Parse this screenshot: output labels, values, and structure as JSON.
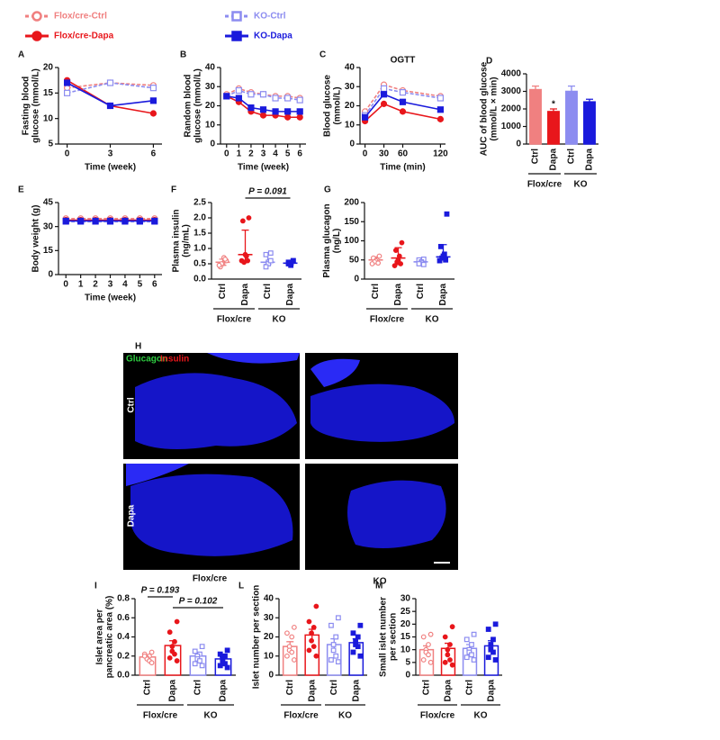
{
  "chart_data": [
    {
      "type": "line",
      "panel": "A",
      "x": [
        0,
        3,
        6
      ],
      "xlim": [
        -0.6,
        6.6
      ],
      "xticks": [
        0,
        3,
        6
      ],
      "ylim": [
        5,
        20
      ],
      "yticks": [
        5,
        10,
        15,
        20
      ],
      "xlabel": "Time (week)",
      "ylabel": [
        "Fasting blood",
        "glucose (mmol/L)"
      ],
      "series": [
        {
          "name": "Flox/cre-Ctrl",
          "color": "#f08080",
          "dashed": true,
          "marker": "circle-open",
          "values": [
            16,
            17,
            16.5
          ]
        },
        {
          "name": "Flox/cre-Dapa",
          "color": "#e8161b",
          "dashed": false,
          "marker": "circle",
          "values": [
            17.5,
            12.5,
            11
          ]
        },
        {
          "name": "KO-Ctrl",
          "color": "#8c8cf0",
          "dashed": true,
          "marker": "square-open",
          "values": [
            15,
            17,
            16
          ]
        },
        {
          "name": "KO-Dapa",
          "color": "#1a1adc",
          "dashed": false,
          "marker": "square",
          "values": [
            17,
            12.5,
            13.5
          ]
        }
      ]
    },
    {
      "type": "line",
      "panel": "B",
      "x": [
        0,
        1,
        2,
        3,
        4,
        5,
        6
      ],
      "xlim": [
        -0.5,
        6.5
      ],
      "xticks": [
        0,
        1,
        2,
        3,
        4,
        5,
        6
      ],
      "ylim": [
        0,
        40
      ],
      "yticks": [
        0,
        10,
        20,
        30,
        40
      ],
      "xlabel": "Time (week)",
      "ylabel": [
        "Random blood",
        "glucose (mmol/L)"
      ],
      "series": [
        {
          "name": "Flox/cre-Ctrl",
          "color": "#f08080",
          "dashed": true,
          "marker": "circle-open",
          "values": [
            26,
            29,
            27,
            26,
            25,
            25,
            24
          ]
        },
        {
          "name": "Flox/cre-Dapa",
          "color": "#e8161b",
          "dashed": false,
          "marker": "circle",
          "values": [
            25,
            22,
            17,
            15,
            15,
            14,
            14
          ]
        },
        {
          "name": "KO-Ctrl",
          "color": "#8c8cf0",
          "dashed": true,
          "marker": "square-open",
          "values": [
            25,
            28,
            26,
            26,
            24,
            24,
            23
          ]
        },
        {
          "name": "KO-Dapa",
          "color": "#1a1adc",
          "dashed": false,
          "marker": "square",
          "values": [
            25,
            24,
            19,
            18,
            17,
            17,
            17
          ]
        }
      ]
    },
    {
      "type": "line",
      "panel": "C",
      "title": "OGTT",
      "x": [
        0,
        30,
        60,
        120
      ],
      "xlim": [
        -8,
        128
      ],
      "xticks": [
        0,
        30,
        60,
        120
      ],
      "ylim": [
        0,
        40
      ],
      "yticks": [
        0,
        10,
        20,
        30,
        40
      ],
      "xlabel": "Time (min)",
      "ylabel": [
        "Blood glucose",
        "(mmol/L)"
      ],
      "series": [
        {
          "name": "Flox/cre-Ctrl",
          "color": "#f08080",
          "dashed": true,
          "marker": "circle-open",
          "values": [
            17,
            31,
            28,
            25
          ]
        },
        {
          "name": "Flox/cre-Dapa",
          "color": "#e8161b",
          "dashed": false,
          "marker": "circle",
          "values": [
            12,
            21,
            17,
            13
          ]
        },
        {
          "name": "KO-Ctrl",
          "color": "#8c8cf0",
          "dashed": true,
          "marker": "square-open",
          "values": [
            15,
            29,
            27,
            24
          ]
        },
        {
          "name": "KO-Dapa",
          "color": "#1a1adc",
          "dashed": false,
          "marker": "square",
          "values": [
            14,
            26,
            22,
            18
          ]
        }
      ]
    },
    {
      "type": "bar",
      "panel": "D",
      "categories": [
        "Ctrl",
        "Dapa",
        "Ctrl",
        "Dapa"
      ],
      "group_labels": [
        "Flox/cre",
        "KO"
      ],
      "colors": [
        "#f08080",
        "#e8161b",
        "#8c8cf0",
        "#1a1adc"
      ],
      "values": [
        3100,
        1850,
        3000,
        2400
      ],
      "errors": [
        200,
        150,
        300,
        150
      ],
      "star_labels": [
        null,
        "*",
        null,
        null
      ],
      "ylim": [
        0,
        4000
      ],
      "yticks": [
        0,
        1000,
        2000,
        3000,
        4000
      ],
      "ylabel": [
        "AUC of blood glucose",
        "(mmol/L × min)"
      ]
    },
    {
      "type": "line",
      "panel": "E",
      "x": [
        0,
        1,
        2,
        3,
        4,
        5,
        6
      ],
      "xlim": [
        -0.5,
        6.5
      ],
      "xticks": [
        0,
        1,
        2,
        3,
        4,
        5,
        6
      ],
      "ylim": [
        0,
        45
      ],
      "yticks": [
        0,
        15,
        30,
        45
      ],
      "xlabel": "Time (week)",
      "ylabel": [
        "Body weight (g)"
      ],
      "series": [
        {
          "name": "Flox/cre-Ctrl",
          "color": "#f08080",
          "dashed": true,
          "marker": "circle-open",
          "values": [
            35,
            35,
            35,
            35,
            35,
            35,
            35
          ]
        },
        {
          "name": "Flox/cre-Dapa",
          "color": "#e8161b",
          "dashed": false,
          "marker": "circle",
          "values": [
            34,
            34,
            34,
            34,
            34,
            34,
            34
          ]
        },
        {
          "name": "KO-Ctrl",
          "color": "#8c8cf0",
          "dashed": true,
          "marker": "square-open",
          "values": [
            33,
            33,
            33,
            33,
            33,
            33,
            33
          ]
        },
        {
          "name": "KO-Dapa",
          "color": "#1a1adc",
          "dashed": false,
          "marker": "square",
          "values": [
            33.5,
            33.5,
            33.5,
            33.5,
            33.5,
            33.5,
            33.5
          ]
        }
      ]
    },
    {
      "type": "dot",
      "panel": "F",
      "categories": [
        "Ctrl",
        "Dapa",
        "Ctrl",
        "Dapa"
      ],
      "group_labels": [
        "Flox/cre",
        "KO"
      ],
      "colors": [
        "#f08080",
        "#e8161b",
        "#8c8cf0",
        "#1a1adc"
      ],
      "markers": [
        "circle-open",
        "circle",
        "square-open",
        "square"
      ],
      "values": [
        0.55,
        0.8,
        0.55,
        0.52
      ],
      "ranges": [
        [
          0.45,
          0.65
        ],
        [
          0.6,
          1.6
        ],
        [
          0.48,
          0.8
        ],
        [
          0.47,
          0.58
        ]
      ],
      "points": [
        [
          0.6,
          0.4,
          0.7,
          0.5,
          0.5,
          0.65,
          0.45
        ],
        [
          2.0,
          1.9,
          0.75,
          0.8,
          0.55,
          0.6,
          0.6
        ],
        [
          0.85,
          0.8,
          0.55,
          0.5,
          0.4,
          0.6
        ],
        [
          0.6,
          0.55,
          0.45,
          0.5,
          0.5,
          0.6
        ]
      ],
      "brackets": [
        {
          "label": "P = 0.091",
          "from": 1,
          "to": 3
        }
      ],
      "ylim": [
        0,
        2.5
      ],
      "yticks": [
        {
          "value": 0,
          "label": "0.0"
        },
        {
          "value": 0.5,
          "label": "0.5"
        },
        {
          "value": 1,
          "label": "1.0"
        },
        {
          "value": 1.5,
          "label": "1.5"
        },
        {
          "value": 2,
          "label": "2.0"
        },
        {
          "value": 2.5,
          "label": "2.5"
        }
      ],
      "ylabel": [
        "Plasma insulin",
        "(ng/mL)"
      ]
    },
    {
      "type": "dot",
      "panel": "G",
      "categories": [
        "Ctrl",
        "Dapa",
        "Ctrl",
        "Dapa"
      ],
      "group_labels": [
        "Flox/cre",
        "KO"
      ],
      "colors": [
        "#f08080",
        "#e8161b",
        "#8c8cf0",
        "#1a1adc"
      ],
      "markers": [
        "circle-open",
        "circle",
        "square-open",
        "square"
      ],
      "values": [
        50,
        55,
        45,
        58
      ],
      "ranges": [
        [
          43,
          58
        ],
        [
          38,
          82
        ],
        [
          40,
          50
        ],
        [
          50,
          90
        ]
      ],
      "points": [
        [
          60,
          55,
          50,
          48,
          45,
          42,
          40
        ],
        [
          95,
          75,
          60,
          50,
          45,
          40,
          35
        ],
        [
          52,
          50,
          45,
          42,
          40,
          38
        ],
        [
          170,
          85,
          65,
          60,
          55,
          50,
          48
        ]
      ],
      "ylim": [
        0,
        200
      ],
      "yticks": [
        0,
        50,
        100,
        150,
        200
      ],
      "ylabel": [
        "Plasma glucagon",
        "(ng/L)"
      ]
    },
    {
      "type": "bar",
      "panel": "I",
      "categories": [
        "Ctrl",
        "Dapa",
        "Ctrl",
        "Dapa"
      ],
      "group_labels": [
        "Flox/cre",
        "KO"
      ],
      "colors": [
        "#f08080",
        "#e8161b",
        "#8c8cf0",
        "#1a1adc"
      ],
      "markers": [
        "circle-open",
        "circle",
        "square-open",
        "square"
      ],
      "values": [
        0.19,
        0.31,
        0.2,
        0.17
      ],
      "errors": [
        0.02,
        0.05,
        0.03,
        0.02
      ],
      "points": [
        [
          0.24,
          0.22,
          0.2,
          0.18,
          0.17,
          0.15,
          0.2,
          0.13
        ],
        [
          0.56,
          0.45,
          0.35,
          0.3,
          0.25,
          0.22,
          0.18,
          0.15
        ],
        [
          0.3,
          0.25,
          0.22,
          0.2,
          0.17,
          0.15,
          0.12,
          0.1
        ],
        [
          0.26,
          0.22,
          0.2,
          0.17,
          0.15,
          0.12,
          0.1,
          0.08
        ]
      ],
      "brackets": [
        {
          "label": "P = 0.193",
          "from": 0,
          "to": 1
        },
        {
          "label": "P = 0.102",
          "from": 1,
          "to": 3
        }
      ],
      "ylim": [
        0,
        0.8
      ],
      "yticks": [
        {
          "value": 0,
          "label": "0.0"
        },
        {
          "value": 0.2,
          "label": "0.2"
        },
        {
          "value": 0.4,
          "label": "0.4"
        },
        {
          "value": 0.6,
          "label": "0.6"
        },
        {
          "value": 0.8,
          "label": "0.8"
        }
      ],
      "ylabel": [
        "Islet area per",
        "pancreatic area (%)"
      ]
    },
    {
      "type": "bar",
      "panel": "L",
      "categories": [
        "Ctrl",
        "Dapa",
        "Ctrl",
        "Dapa"
      ],
      "group_labels": [
        "Flox/cre",
        "KO"
      ],
      "colors": [
        "#f08080",
        "#e8161b",
        "#8c8cf0",
        "#1a1adc"
      ],
      "markers": [
        "circle-open",
        "circle",
        "square-open",
        "square"
      ],
      "values": [
        15,
        21,
        16,
        17
      ],
      "errors": [
        2.5,
        3,
        3,
        2
      ],
      "points": [
        [
          25,
          22,
          20,
          15,
          13,
          12,
          10,
          8
        ],
        [
          36,
          28,
          25,
          22,
          18,
          15,
          13,
          10
        ],
        [
          30,
          26,
          20,
          16,
          13,
          10,
          8,
          7
        ],
        [
          26,
          22,
          20,
          18,
          16,
          15,
          12,
          10
        ]
      ],
      "ylim": [
        0,
        40
      ],
      "yticks": [
        0,
        10,
        20,
        30,
        40
      ],
      "ylabel": [
        "Islet number per section"
      ]
    },
    {
      "type": "bar",
      "panel": "M",
      "categories": [
        "Ctrl",
        "Dapa",
        "Ctrl",
        "Dapa"
      ],
      "group_labels": [
        "Flox/cre",
        "KO"
      ],
      "colors": [
        "#f08080",
        "#e8161b",
        "#8c8cf0",
        "#1a1adc"
      ],
      "markers": [
        "circle-open",
        "circle",
        "square-open",
        "square"
      ],
      "values": [
        10,
        10.5,
        10.5,
        11.5
      ],
      "errors": [
        1.5,
        2,
        1.5,
        2
      ],
      "points": [
        [
          16,
          15,
          12,
          10,
          9,
          8,
          6,
          5
        ],
        [
          19,
          15,
          12,
          10,
          8,
          6,
          5,
          4
        ],
        [
          16,
          14,
          12,
          10,
          9,
          8,
          7,
          6
        ],
        [
          20,
          18,
          14,
          12,
          10,
          9,
          7,
          6
        ]
      ],
      "ylim": [
        0,
        30
      ],
      "yticks": [
        0,
        5,
        10,
        15,
        20,
        25,
        30
      ],
      "ylabel": [
        "Small islet number",
        "per section"
      ]
    }
  ],
  "images": {
    "panel": "H",
    "stains": [
      "Glucagon",
      "Insulin"
    ],
    "rows": [
      "Ctrl",
      "Dapa"
    ],
    "columns": [
      "Flox/cre",
      "KO"
    ]
  }
}
